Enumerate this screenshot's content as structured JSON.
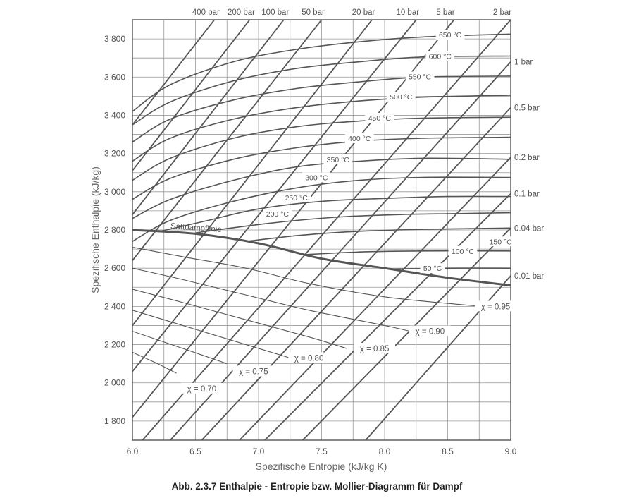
{
  "chart_data": {
    "type": "line",
    "title": "",
    "xlabel": "Spezifische Entropie (kJ/kg K)",
    "ylabel": "Spezifische Enthalpie (kJ/kg)",
    "xlim": [
      6.0,
      9.0
    ],
    "ylim": [
      1700,
      3900
    ],
    "x_ticks": [
      6.0,
      6.5,
      7.0,
      7.5,
      8.0,
      8.5,
      9.0
    ],
    "x_tick_labels": [
      "6.0",
      "6.5",
      "7.0",
      "7.5",
      "8.0",
      "8.5",
      "9.0"
    ],
    "y_ticks": [
      1800,
      2000,
      2200,
      2400,
      2600,
      2800,
      3000,
      3200,
      3400,
      3600,
      3800
    ],
    "y_tick_labels": [
      "1 800",
      "2 000",
      "2 200",
      "2 400",
      "2 600",
      "2 800",
      "3 000",
      "3 200",
      "3 400",
      "3 600",
      "3 800"
    ],
    "grid": true,
    "isobars": [
      {
        "label": "400 bar",
        "x": [
          6.0,
          6.65
        ],
        "y": [
          3350,
          3900
        ]
      },
      {
        "label": "200 bar",
        "x": [
          6.0,
          6.93
        ],
        "y": [
          3110,
          3900
        ]
      },
      {
        "label": "100 bar",
        "x": [
          6.0,
          7.2
        ],
        "y": [
          2880,
          3900
        ]
      },
      {
        "label": "50 bar",
        "x": [
          6.0,
          7.5
        ],
        "y": [
          2640,
          3900
        ]
      },
      {
        "label": "20 bar",
        "x": [
          6.0,
          7.9
        ],
        "y": [
          2300,
          3900
        ]
      },
      {
        "label": "10 bar",
        "x": [
          6.0,
          8.25
        ],
        "y": [
          2060,
          3900
        ]
      },
      {
        "label": "5 bar",
        "x": [
          6.0,
          8.55
        ],
        "y": [
          1820,
          3900
        ]
      },
      {
        "label": "2 bar",
        "x": [
          6.08,
          9.0
        ],
        "y": [
          1700,
          3900
        ]
      },
      {
        "label": "1 bar",
        "x": [
          6.3,
          9.0
        ],
        "y": [
          1700,
          3680
        ]
      },
      {
        "label": "0.5 bar",
        "x": [
          6.55,
          9.0
        ],
        "y": [
          1700,
          3440
        ]
      },
      {
        "label": "0.2 bar",
        "x": [
          6.85,
          9.0
        ],
        "y": [
          1700,
          3180
        ]
      },
      {
        "label": "0.1 bar",
        "x": [
          7.05,
          9.0
        ],
        "y": [
          1700,
          2990
        ]
      },
      {
        "label": "0.04 bar",
        "x": [
          7.35,
          9.0
        ],
        "y": [
          1700,
          2810
        ]
      },
      {
        "label": "0.01 bar",
        "x": [
          7.85,
          9.0
        ],
        "y": [
          1700,
          2560
        ]
      }
    ],
    "isotherms": [
      {
        "label": "650 °C",
        "x": [
          6.0,
          6.3,
          6.8,
          7.3,
          7.8,
          8.3,
          9.0
        ],
        "y": [
          3420,
          3560,
          3680,
          3745,
          3785,
          3810,
          3825
        ]
      },
      {
        "label": "600 °C",
        "x": [
          6.0,
          6.3,
          6.8,
          7.3,
          7.8,
          8.3,
          9.0
        ],
        "y": [
          3350,
          3470,
          3580,
          3645,
          3680,
          3705,
          3710
        ]
      },
      {
        "label": "550 °C",
        "x": [
          6.0,
          6.3,
          6.8,
          7.3,
          7.8,
          8.3,
          9.0
        ],
        "y": [
          3260,
          3380,
          3480,
          3540,
          3575,
          3600,
          3605
        ]
      },
      {
        "label": "500 °C",
        "x": [
          6.0,
          6.3,
          6.8,
          7.3,
          7.8,
          8.3,
          9.0
        ],
        "y": [
          3160,
          3280,
          3380,
          3440,
          3475,
          3495,
          3505
        ]
      },
      {
        "label": "450 °C",
        "x": [
          6.0,
          6.3,
          6.8,
          7.3,
          7.8,
          8.3,
          9.0
        ],
        "y": [
          3060,
          3175,
          3280,
          3340,
          3370,
          3385,
          3390
        ]
      },
      {
        "label": "400 °C",
        "x": [
          6.0,
          6.3,
          6.8,
          7.3,
          7.8,
          8.3,
          9.0
        ],
        "y": [
          2960,
          3070,
          3170,
          3230,
          3265,
          3280,
          3285
        ]
      },
      {
        "label": "350 °C",
        "x": [
          6.0,
          6.3,
          6.8,
          7.3,
          7.8,
          8.3,
          9.0
        ],
        "y": [
          2860,
          2960,
          3060,
          3130,
          3160,
          3175,
          3170
        ]
      },
      {
        "label": "300 °C",
        "x": [
          6.0,
          6.3,
          6.8,
          7.3,
          7.8,
          8.3,
          9.0
        ],
        "y": [
          2740,
          2850,
          2950,
          3020,
          3060,
          3075,
          3075
        ]
      },
      {
        "label": "250 °C",
        "x": [
          6.2,
          6.6,
          7.0,
          7.5,
          8.0,
          8.5,
          9.0
        ],
        "y": [
          2790,
          2850,
          2910,
          2950,
          2965,
          2975,
          2975
        ]
      },
      {
        "label": "200 °C",
        "x": [
          6.5,
          6.9,
          7.3,
          7.7,
          8.1,
          8.5,
          9.0
        ],
        "y": [
          2785,
          2820,
          2850,
          2870,
          2880,
          2885,
          2890
        ]
      },
      {
        "label": "150 °C",
        "x": [
          6.9,
          7.3,
          7.7,
          8.1,
          8.5,
          9.0
        ],
        "y": [
          2740,
          2770,
          2790,
          2800,
          2805,
          2810
        ]
      },
      {
        "label": "100 °C",
        "x": [
          7.35,
          7.8,
          8.3,
          9.0
        ],
        "y": [
          2670,
          2685,
          2690,
          2690
        ]
      },
      {
        "label": "50 °C",
        "x": [
          8.05,
          8.5,
          9.0
        ],
        "y": [
          2595,
          2600,
          2600
        ]
      }
    ],
    "saturation_line": {
      "label": "Sattdampflinie",
      "x": [
        6.0,
        6.5,
        7.0,
        7.5,
        8.0,
        8.5,
        9.0
      ],
      "y": [
        2800,
        2780,
        2730,
        2650,
        2600,
        2550,
        2510
      ]
    },
    "quality_lines": [
      {
        "label": "χ = 0.95",
        "x": [
          6.0,
          6.4,
          6.9,
          7.4,
          8.0,
          8.6,
          8.8
        ],
        "y": [
          2710,
          2660,
          2600,
          2520,
          2450,
          2410,
          2400
        ]
      },
      {
        "label": "χ = 0.90",
        "x": [
          6.0,
          6.4,
          6.9,
          7.4,
          8.0,
          8.2
        ],
        "y": [
          2600,
          2540,
          2460,
          2380,
          2300,
          2270
        ]
      },
      {
        "label": "χ = 0.85",
        "x": [
          6.0,
          6.4,
          6.9,
          7.4,
          7.7
        ],
        "y": [
          2490,
          2420,
          2330,
          2240,
          2180
        ]
      },
      {
        "label": "χ = 0.80",
        "x": [
          6.0,
          6.4,
          6.9,
          7.25
        ],
        "y": [
          2380,
          2300,
          2200,
          2130
        ]
      },
      {
        "label": "χ = 0.75",
        "x": [
          6.0,
          6.4,
          6.75
        ],
        "y": [
          2270,
          2180,
          2100
        ]
      },
      {
        "label": "χ = 0.70",
        "x": [
          6.0,
          6.2,
          6.35
        ],
        "y": [
          2160,
          2100,
          2050
        ]
      }
    ],
    "isobar_label_positions": "top and right"
  },
  "caption": "Abb. 2.3.7 Enthalpie - Entropie bzw. Mollier-Diagramm für Dampf"
}
